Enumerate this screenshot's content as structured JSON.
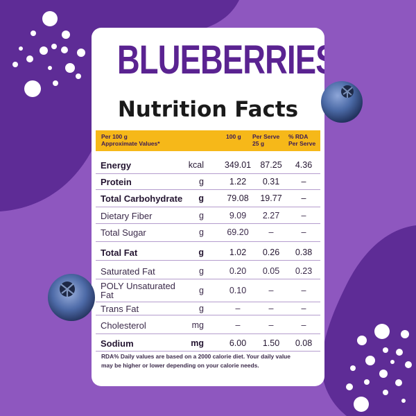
{
  "colors": {
    "background": "#8e57bf",
    "blob_dark": "#5e2c96",
    "title": "#5a2391",
    "header_band": "#f6b819",
    "card": "#ffffff",
    "divider": "#b49ccd",
    "berry": "#4b6aa6"
  },
  "card": {
    "title": "BLUEBERRIES",
    "subtitle": "Nutrition Facts"
  },
  "table_header": {
    "per_label_line1": "Per 100 g",
    "per_label_line2": "Approximate Values*",
    "col_100g": "100 g",
    "col_serve_line1": "Per Serve",
    "col_serve_line2": "25 g",
    "col_rda_line1": "% RDA",
    "col_rda_line2": "Per Serve"
  },
  "rows": [
    {
      "name": "Energy",
      "unit": "kcal",
      "v100": "349.01",
      "serve": "87.25",
      "rda": "4.36",
      "bold": true
    },
    {
      "name": "Protein",
      "unit": "g",
      "v100": "1.22",
      "serve": "0.31",
      "rda": "–",
      "bold": true
    },
    {
      "name": "Total Carbohydrate",
      "unit": "g",
      "v100": "79.08",
      "serve": "19.77",
      "rda": "–",
      "bold": true
    },
    {
      "name": "Dietary Fiber",
      "unit": "g",
      "v100": "9.09",
      "serve": "2.27",
      "rda": "–",
      "bold": false
    },
    {
      "name": "Total Sugar",
      "unit": "g",
      "v100": "69.20",
      "serve": "–",
      "rda": "–",
      "bold": false
    },
    {
      "name": "Total Fat",
      "unit": "g",
      "v100": "1.02",
      "serve": "0.26",
      "rda": "0.38",
      "bold": true
    },
    {
      "name": "Saturated Fat",
      "unit": "g",
      "v100": "0.20",
      "serve": "0.05",
      "rda": "0.23",
      "bold": false
    },
    {
      "name_line1": "POLY Unsaturated",
      "name_line2": "Fat",
      "unit": "g",
      "v100": "0.10",
      "serve": "–",
      "rda": "–",
      "bold": false
    },
    {
      "name": "Trans Fat",
      "unit": "g",
      "v100": "–",
      "serve": "–",
      "rda": "–",
      "bold": false
    },
    {
      "name": "Cholesterol",
      "unit": "mg",
      "v100": "–",
      "serve": "–",
      "rda": "–",
      "bold": false
    },
    {
      "name": "Sodium",
      "unit": "mg",
      "v100": "6.00",
      "serve": "1.50",
      "rda": "0.08",
      "bold": true
    }
  ],
  "footnote": {
    "line1": "RDA% Daily values are based on a 2000 calorie diet. Your daily value",
    "line2": "may be higher or lower depending on your calorie needs."
  },
  "icons": [
    "blueberry-icon",
    "bubble-dots-decoration"
  ]
}
